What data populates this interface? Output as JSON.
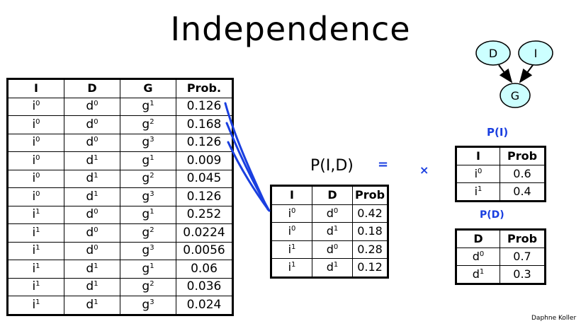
{
  "title": "Independence",
  "joint_table": {
    "headers": [
      "I",
      "D",
      "G",
      "Prob."
    ],
    "rows": [
      {
        "i": "i",
        "i_sup": "0",
        "d": "d",
        "d_sup": "0",
        "g": "g",
        "g_sup": "1",
        "p": "0.126"
      },
      {
        "i": "i",
        "i_sup": "0",
        "d": "d",
        "d_sup": "0",
        "g": "g",
        "g_sup": "2",
        "p": "0.168"
      },
      {
        "i": "i",
        "i_sup": "0",
        "d": "d",
        "d_sup": "0",
        "g": "g",
        "g_sup": "3",
        "p": "0.126"
      },
      {
        "i": "i",
        "i_sup": "0",
        "d": "d",
        "d_sup": "1",
        "g": "g",
        "g_sup": "1",
        "p": "0.009"
      },
      {
        "i": "i",
        "i_sup": "0",
        "d": "d",
        "d_sup": "1",
        "g": "g",
        "g_sup": "2",
        "p": "0.045"
      },
      {
        "i": "i",
        "i_sup": "0",
        "d": "d",
        "d_sup": "1",
        "g": "g",
        "g_sup": "3",
        "p": "0.126"
      },
      {
        "i": "i",
        "i_sup": "1",
        "d": "d",
        "d_sup": "0",
        "g": "g",
        "g_sup": "1",
        "p": "0.252"
      },
      {
        "i": "i",
        "i_sup": "1",
        "d": "d",
        "d_sup": "0",
        "g": "g",
        "g_sup": "2",
        "p": "0.0224"
      },
      {
        "i": "i",
        "i_sup": "1",
        "d": "d",
        "d_sup": "0",
        "g": "g",
        "g_sup": "3",
        "p": "0.0056"
      },
      {
        "i": "i",
        "i_sup": "1",
        "d": "d",
        "d_sup": "1",
        "g": "g",
        "g_sup": "1",
        "p": "0.06"
      },
      {
        "i": "i",
        "i_sup": "1",
        "d": "d",
        "d_sup": "1",
        "g": "g",
        "g_sup": "2",
        "p": "0.036"
      },
      {
        "i": "i",
        "i_sup": "1",
        "d": "d",
        "d_sup": "1",
        "g": "g",
        "g_sup": "3",
        "p": "0.024"
      }
    ]
  },
  "marginal_label": "P(I,D)",
  "marginal_table": {
    "headers": [
      "I",
      "D",
      "Prob"
    ],
    "rows": [
      {
        "i": "i",
        "i_sup": "0",
        "d": "d",
        "d_sup": "0",
        "p": "0.42"
      },
      {
        "i": "i",
        "i_sup": "0",
        "d": "d",
        "d_sup": "1",
        "p": "0.18"
      },
      {
        "i": "i",
        "i_sup": "1",
        "d": "d",
        "d_sup": "0",
        "p": "0.28"
      },
      {
        "i": "i",
        "i_sup": "1",
        "d": "d",
        "d_sup": "1",
        "p": "0.12"
      }
    ]
  },
  "handwritten": {
    "equals": "=",
    "times": "×",
    "label_pi": "P(I)",
    "label_pd": "P(D)"
  },
  "pi_table": {
    "headers": [
      "I",
      "Prob"
    ],
    "rows": [
      {
        "v": "i",
        "v_sup": "0",
        "p": "0.6"
      },
      {
        "v": "i",
        "v_sup": "1",
        "p": "0.4"
      }
    ]
  },
  "pd_table": {
    "headers": [
      "D",
      "Prob"
    ],
    "rows": [
      {
        "v": "d",
        "v_sup": "0",
        "p": "0.7"
      },
      {
        "v": "d",
        "v_sup": "1",
        "p": "0.3"
      }
    ]
  },
  "network": {
    "nodes": [
      {
        "id": "D",
        "label": "D"
      },
      {
        "id": "I",
        "label": "I"
      },
      {
        "id": "G",
        "label": "G"
      }
    ],
    "edges": [
      {
        "from": "D",
        "to": "G"
      },
      {
        "from": "I",
        "to": "G"
      }
    ],
    "node_fill": "#ccffff"
  },
  "ink_color": "#1a3fe0",
  "credit": "Daphne Koller"
}
